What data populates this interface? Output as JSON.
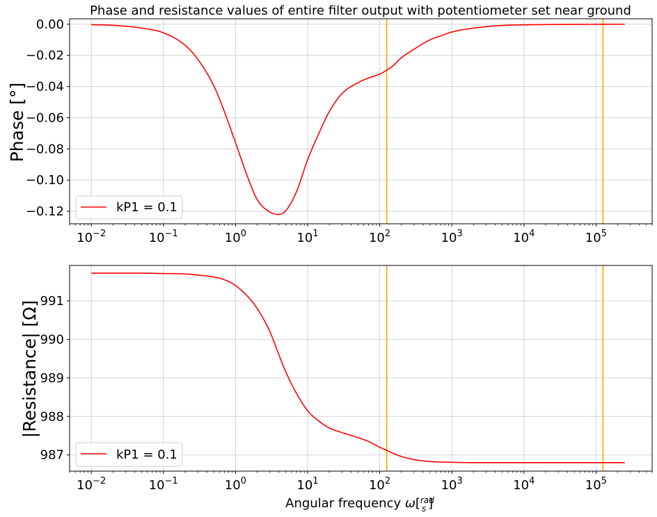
{
  "chart_data": [
    {
      "type": "line",
      "title": "Phase and resistance values of entire filter output with potentiometer set near ground",
      "ylabel": "Phase [°]",
      "xlabel": "",
      "xscale": "log",
      "xlim": [
        0.005,
        600000
      ],
      "ylim": [
        -0.128,
        0.0035
      ],
      "grid": true,
      "legend_position": "lower-left",
      "x_ticks": [
        {
          "value": 0.01,
          "base": "10",
          "exp": "−2"
        },
        {
          "value": 0.1,
          "base": "10",
          "exp": "−1"
        },
        {
          "value": 1,
          "base": "10",
          "exp": "0"
        },
        {
          "value": 10,
          "base": "10",
          "exp": "1"
        },
        {
          "value": 100,
          "base": "10",
          "exp": "2"
        },
        {
          "value": 1000,
          "base": "10",
          "exp": "3"
        },
        {
          "value": 10000,
          "base": "10",
          "exp": "4"
        },
        {
          "value": 100000,
          "base": "10",
          "exp": "5"
        }
      ],
      "y_ticks": [
        {
          "value": 0.0,
          "label": "0.00"
        },
        {
          "value": -0.02,
          "label": "−0.02"
        },
        {
          "value": -0.04,
          "label": "−0.04"
        },
        {
          "value": -0.06,
          "label": "−0.06"
        },
        {
          "value": -0.08,
          "label": "−0.08"
        },
        {
          "value": -0.1,
          "label": "−0.10"
        },
        {
          "value": -0.12,
          "label": "−0.12"
        }
      ],
      "vlines": [
        {
          "x": 125,
          "color": "#ffa500"
        },
        {
          "x": 125000,
          "color": "#ffa500"
        }
      ],
      "series": [
        {
          "name": "kP1 = 0.1",
          "color": "#ff0000",
          "x": [
            0.01,
            0.02,
            0.05,
            0.1,
            0.2,
            0.3,
            0.5,
            0.7,
            1,
            1.5,
            2,
            3,
            4,
            5,
            7,
            10,
            15,
            20,
            30,
            50,
            70,
            100,
            125,
            150,
            200,
            300,
            500,
            700,
            1000,
            2000,
            5000,
            10000,
            100000,
            250000
          ],
          "y": [
            -0.0003,
            -0.0007,
            -0.0025,
            -0.0055,
            -0.0135,
            -0.0225,
            -0.0395,
            -0.056,
            -0.076,
            -0.099,
            -0.1125,
            -0.1205,
            -0.122,
            -0.1195,
            -0.1075,
            -0.087,
            -0.068,
            -0.056,
            -0.0445,
            -0.0375,
            -0.0345,
            -0.032,
            -0.0295,
            -0.027,
            -0.0215,
            -0.016,
            -0.01,
            -0.0075,
            -0.005,
            -0.0025,
            -0.0008,
            -0.0004,
            -5e-05,
            0.0
          ]
        }
      ]
    },
    {
      "type": "line",
      "title": "",
      "ylabel": "|Resistance| [Ω]",
      "xlabel": "Angular frequency ω[rad/s]",
      "xlabel_parts": {
        "prefix": "Angular frequency ",
        "symbol": "ω",
        "open": "[",
        "num": "rad",
        "den": "s",
        "close": "]"
      },
      "xscale": "log",
      "xlim": [
        0.005,
        600000
      ],
      "ylim": [
        986.58,
        991.92
      ],
      "grid": true,
      "legend_position": "lower-left",
      "x_ticks": [
        {
          "value": 0.01,
          "base": "10",
          "exp": "−2"
        },
        {
          "value": 0.1,
          "base": "10",
          "exp": "−1"
        },
        {
          "value": 1,
          "base": "10",
          "exp": "0"
        },
        {
          "value": 10,
          "base": "10",
          "exp": "1"
        },
        {
          "value": 100,
          "base": "10",
          "exp": "2"
        },
        {
          "value": 1000,
          "base": "10",
          "exp": "3"
        },
        {
          "value": 10000,
          "base": "10",
          "exp": "4"
        },
        {
          "value": 100000,
          "base": "10",
          "exp": "5"
        }
      ],
      "y_ticks": [
        {
          "value": 991,
          "label": "991"
        },
        {
          "value": 990,
          "label": "990"
        },
        {
          "value": 989,
          "label": "989"
        },
        {
          "value": 988,
          "label": "988"
        },
        {
          "value": 987,
          "label": "987"
        }
      ],
      "vlines": [
        {
          "x": 125,
          "color": "#ffa500"
        },
        {
          "x": 125000,
          "color": "#ffa500"
        }
      ],
      "series": [
        {
          "name": "kP1 = 0.1",
          "color": "#ff0000",
          "x": [
            0.01,
            0.05,
            0.1,
            0.2,
            0.3,
            0.5,
            0.7,
            1,
            1.5,
            2,
            3,
            4,
            5,
            7,
            10,
            15,
            20,
            30,
            50,
            70,
            100,
            125,
            150,
            200,
            300,
            500,
            1000,
            2000,
            10000,
            100000,
            250000
          ],
          "y": [
            991.72,
            991.72,
            991.71,
            991.7,
            991.67,
            991.62,
            991.55,
            991.4,
            991.1,
            990.8,
            990.2,
            989.6,
            989.15,
            988.6,
            988.15,
            987.85,
            987.7,
            987.58,
            987.45,
            987.35,
            987.2,
            987.12,
            987.05,
            986.96,
            986.88,
            986.83,
            986.81,
            986.8,
            986.8,
            986.8,
            986.8
          ]
        }
      ]
    }
  ]
}
